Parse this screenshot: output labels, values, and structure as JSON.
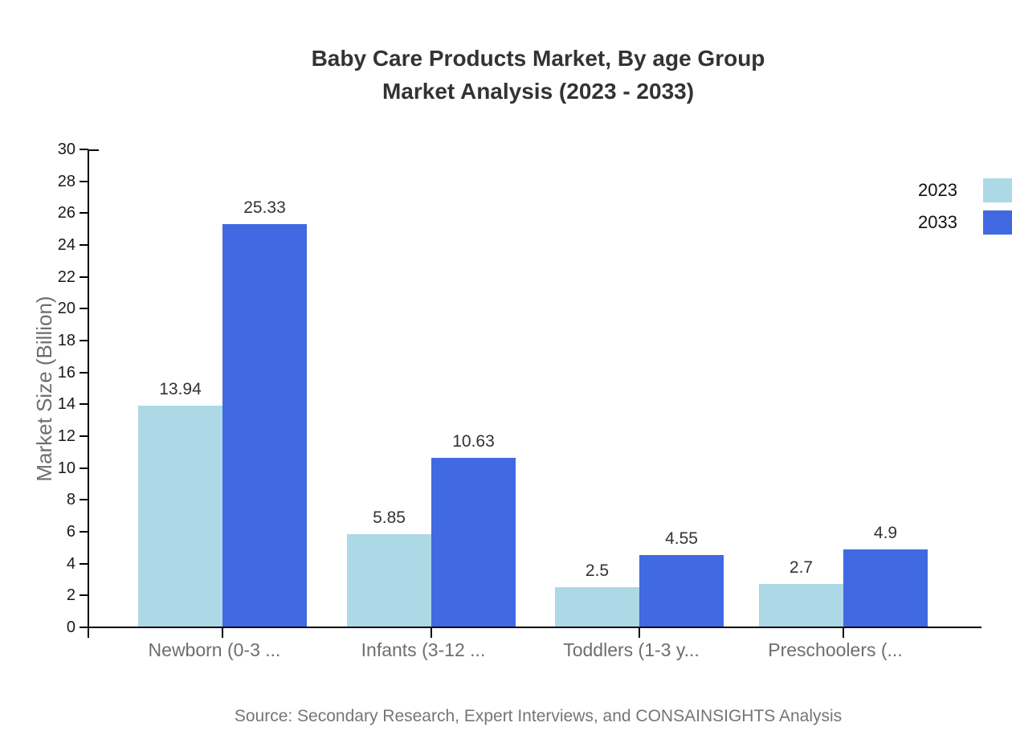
{
  "title": {
    "line1": "Baby Care Products Market, By age Group",
    "line2": "Market Analysis (2023 - 2033)"
  },
  "source": "Source: Secondary Research, Expert Interviews, and CONSAINSIGHTS Analysis",
  "chart_data": {
    "type": "bar",
    "title": "Baby Care Products Market, By age Group Market Analysis (2023 - 2033)",
    "categories": [
      "Newborn (0-3 ...",
      "Infants (3-12 ...",
      "Toddlers (1-3 y...",
      "Preschoolers (..."
    ],
    "series": [
      {
        "name": "2023",
        "color": "#ADD8E6",
        "values": [
          13.94,
          5.85,
          2.5,
          2.7
        ]
      },
      {
        "name": "2033",
        "color": "#4169E1",
        "values": [
          25.33,
          10.63,
          4.55,
          4.9
        ]
      }
    ],
    "xlabel": "",
    "ylabel": "Market Size (Billion)",
    "ylim": [
      0,
      30
    ],
    "ytick_step": 2,
    "grid": false,
    "legend_position": "top-right",
    "value_labels_shown": true
  }
}
